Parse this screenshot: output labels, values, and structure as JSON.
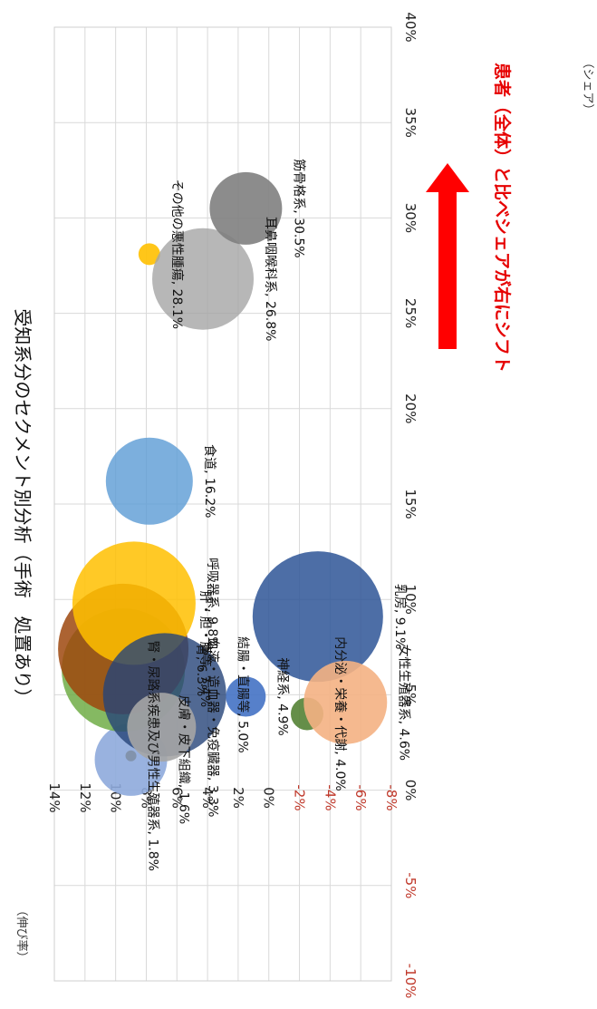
{
  "chart_data": {
    "type": "bubble",
    "title": "受知系分のセクメント別分析（手術　処置あり）",
    "xlabel": "（シェア）",
    "ylabel": "（伸び率）",
    "xlim": [
      -0.1,
      0.4
    ],
    "ylim": [
      -0.08,
      0.14
    ],
    "x_ticks": [
      "-10%",
      "-5%",
      "0%",
      "5%",
      "10%",
      "15%",
      "20%",
      "25%",
      "30%",
      "35%",
      "40%"
    ],
    "y_ticks": [
      "-8%",
      "-6%",
      "-4%",
      "-2%",
      "0%",
      "2%",
      "4%",
      "6%",
      "8%",
      "10%",
      "12%",
      "14%"
    ],
    "grid": true,
    "points": [
      {
        "label": "皮膚・皮下組織, 1.6%",
        "x": 0.016,
        "y": 0.09,
        "size": 1.0,
        "color": "#8eaadb",
        "alpha": 0.9
      },
      {
        "label": "腎・尿路系疾患及び男性生殖器系, 1.8%",
        "x": 0.018,
        "y": 0.09,
        "size": 0.15,
        "color": "#7f8fa6",
        "alpha": 0.9
      },
      {
        "label": "胃, 6.3%",
        "x": 0.063,
        "y": 0.095,
        "size": 1.7,
        "color": "#70ad47",
        "alpha": 0.85
      },
      {
        "label": "肝・胆・膵等, 7.4%",
        "x": 0.074,
        "y": 0.095,
        "size": 1.8,
        "color": "#9e480e",
        "alpha": 0.85
      },
      {
        "label": "呼吸器系, 9.8%",
        "x": 0.098,
        "y": 0.088,
        "size": 1.7,
        "color": "#ffc000",
        "alpha": 0.85
      },
      {
        "label": "結腸・直腸等, 5.0%",
        "x": 0.05,
        "y": 0.068,
        "size": 1.7,
        "color": "#264478",
        "alpha": 0.8
      },
      {
        "label": "血液・造血器・免疫臓器, 3.3%",
        "x": 0.033,
        "y": 0.07,
        "size": 0.95,
        "color": "#a5a5a5",
        "alpha": 0.9
      },
      {
        "label": "食道, 16.2%",
        "x": 0.162,
        "y": 0.078,
        "size": 1.2,
        "color": "#5b9bd5",
        "alpha": 0.8
      },
      {
        "label": "神経系, 4.9%",
        "x": 0.049,
        "y": 0.015,
        "size": 0.55,
        "color": "#4472c4",
        "alpha": 0.9
      },
      {
        "label": "その他の悪性腫瘍, 28.1%",
        "x": 0.281,
        "y": 0.078,
        "size": 0.3,
        "color": "#ffc000",
        "alpha": 0.9
      },
      {
        "label": "耳鼻咽喉科系, 26.8%",
        "x": 0.268,
        "y": 0.043,
        "size": 1.4,
        "color": "#a5a5a5",
        "alpha": 0.8
      },
      {
        "label": "筋骨格系, 30.5%",
        "x": 0.305,
        "y": 0.015,
        "size": 1.0,
        "color": "#7f7f7f",
        "alpha": 0.9
      },
      {
        "label": "乳房, 9.1%",
        "x": 0.091,
        "y": -0.032,
        "size": 1.8,
        "color": "#2e5597",
        "alpha": 0.85
      },
      {
        "label": "内分泌・栄養・代謝, 4.0%",
        "x": 0.04,
        "y": -0.025,
        "size": 0.45,
        "color": "#548235",
        "alpha": 0.9
      },
      {
        "label": "女性生殖器系, 4.6%",
        "x": 0.046,
        "y": -0.05,
        "size": 1.15,
        "color": "#f4b183",
        "alpha": 0.9
      }
    ],
    "annotation": {
      "text": "患者（全体）と比べシェアが右にシフト",
      "color": "#e60000"
    }
  }
}
